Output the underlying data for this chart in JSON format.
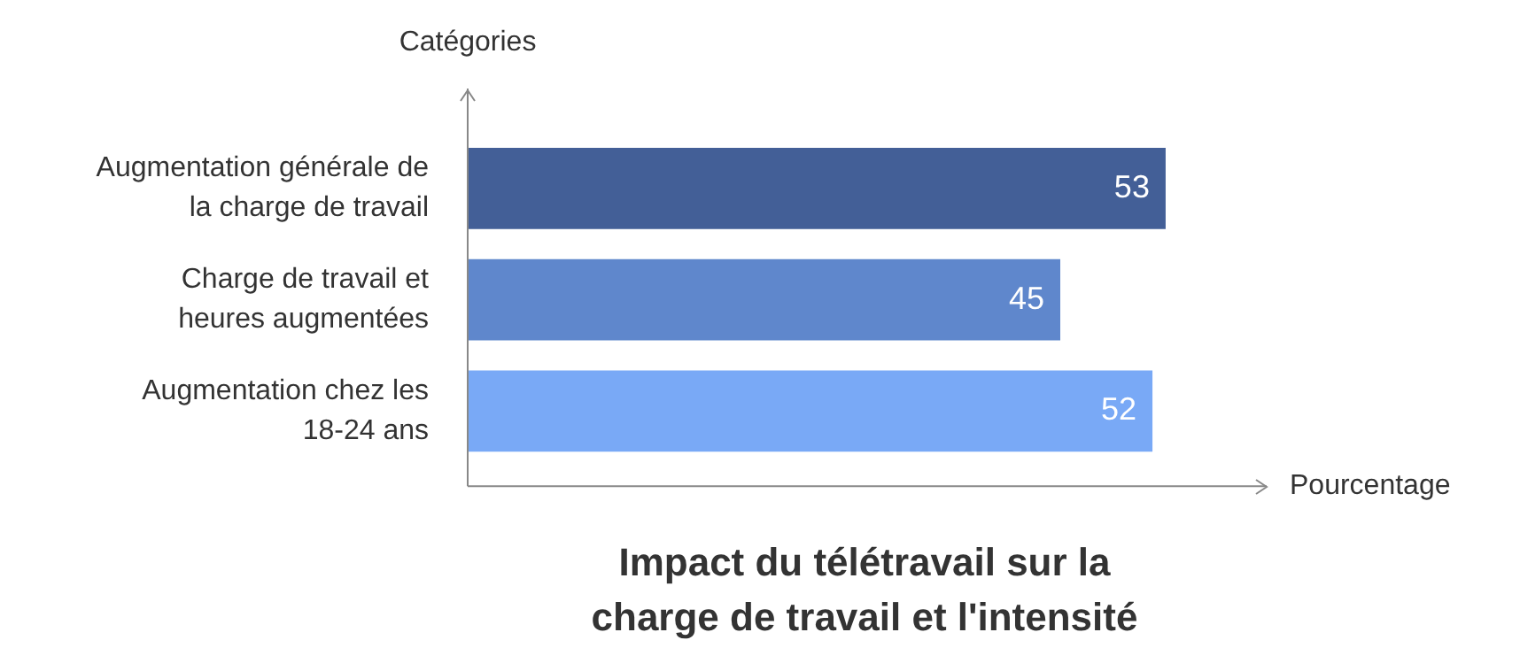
{
  "chart_data": {
    "type": "bar",
    "orientation": "horizontal",
    "title": "Impact du télétravail sur la charge de travail et l'intensité",
    "xlabel": "Pourcentage",
    "ylabel": "Catégories",
    "categories": [
      "Augmentation générale de\nla charge de travail",
      "Charge de travail et\nheures augmentées",
      "Augmentation chez les\n18-24 ans"
    ],
    "values": [
      53,
      45,
      52
    ],
    "colors": [
      "#435f97",
      "#5f87cc",
      "#79a9f6"
    ],
    "data_labels": true,
    "tick_labels": "y"
  }
}
